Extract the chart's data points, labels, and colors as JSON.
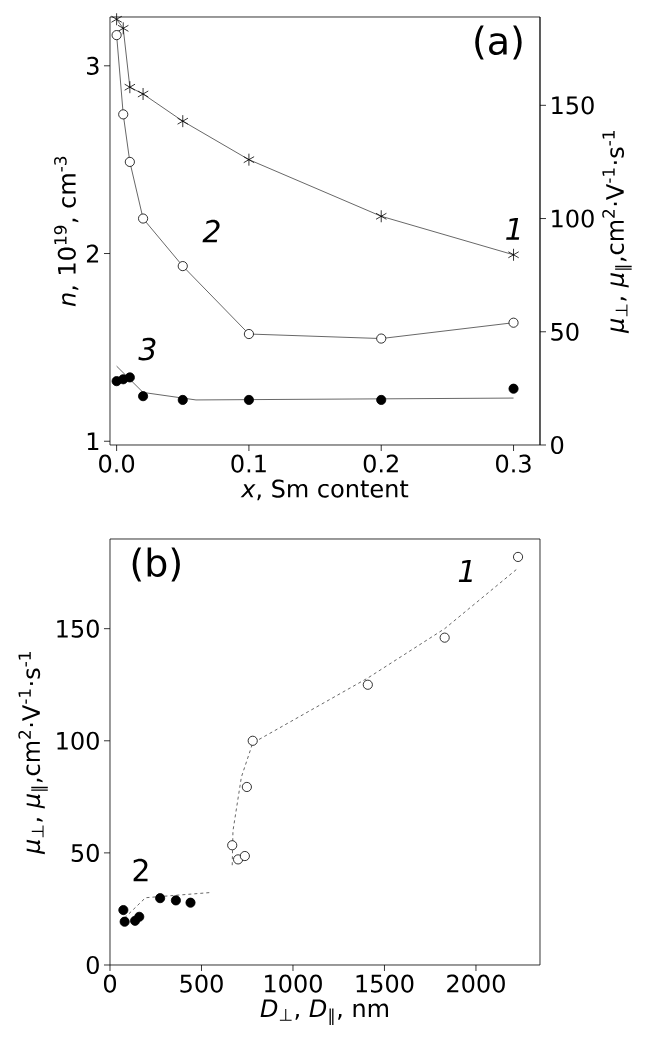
{
  "chart_data": [
    {
      "type": "line",
      "xlabel": "*x*, Sm content",
      "ylabel": "*n*, 10$^{19}$, cm$^{-3}$",
      "y2label": "*μ*$_{⊥}$, *μ*$_{∥}$,cm$^{2}$·V$^{-1}$·s$^{-1}$",
      "annotations": [
        "(a)",
        "*1*",
        "*2*",
        "*3*"
      ],
      "xlim": [
        -0.005,
        0.32
      ],
      "xticks": [
        {
          "value": 0,
          "label": "0.0"
        },
        0.1,
        0.2,
        0.3
      ],
      "ylim": [
        0.98,
        3.26
      ],
      "yticks": [
        1,
        2,
        3
      ],
      "y2lim": [
        0,
        189
      ],
      "y2ticks": [
        0,
        50,
        100,
        150
      ],
      "line_style": "solid",
      "series": [
        {
          "axis": "y2",
          "marker": "cross",
          "color": "#000000",
          "x": [
            0,
            0.005,
            0.01,
            0.02,
            0.05,
            0.1,
            0.2,
            0.3
          ],
          "values": [
            188,
            184,
            158,
            155,
            143,
            126,
            101,
            84
          ]
        },
        {
          "axis": "y2",
          "marker": "circle",
          "color": "#ffffff",
          "x": [
            0,
            0.005,
            0.01,
            0.02,
            0.05,
            0.1,
            0.2,
            0.3
          ],
          "values": [
            181,
            146,
            125,
            100,
            79,
            49,
            47,
            54
          ]
        },
        {
          "type": "scatter",
          "axis": "y",
          "marker": "circle",
          "color": "#000000",
          "x": [
            0,
            0.005,
            0.01,
            0.02,
            0.05,
            0.1,
            0.2,
            0.3
          ],
          "values": [
            1.32,
            1.33,
            1.34,
            1.24,
            1.22,
            1.22,
            1.22,
            1.28
          ]
        },
        {
          "axis": "y",
          "marker": "none",
          "color": "#000000",
          "x": [
            0,
            0.02,
            0.06,
            0.3
          ],
          "values": [
            1.4,
            1.26,
            1.22,
            1.23
          ]
        }
      ]
    },
    {
      "type": "scatter",
      "xlabel": "*D*$_{⊥}$, *D*$_{∥}$, nm",
      "ylabel": "*μ*$_{⊥}$, *μ*$_{∥}$,cm$^{2}$·V$^{-1}$·s$^{-1}$",
      "annotations": [
        "(b)",
        "*1*",
        "2"
      ],
      "xlim": [
        0,
        2350
      ],
      "xticks": [
        0,
        500,
        1000,
        1500,
        2000
      ],
      "ylim": [
        0,
        190
      ],
      "yticks": [
        0,
        50,
        100,
        150
      ],
      "series": [
        {
          "marker": "circle",
          "color": "#ffffff",
          "x": [
            668,
            700,
            737,
            748,
            780,
            1409,
            1829,
            2230
          ],
          "values": [
            53.4,
            47.1,
            48.6,
            79.4,
            100,
            125,
            146,
            182
          ]
        },
        {
          "marker": "circle",
          "color": "#000000",
          "x": [
            73,
            80,
            137,
            160,
            274,
            360,
            440
          ],
          "values": [
            24.5,
            19.3,
            19.7,
            21.5,
            29.8,
            28.8,
            27.8
          ]
        },
        {
          "type": "line",
          "marker": "none",
          "line_style": "dashed",
          "color": "#000000",
          "x": [
            668,
            672,
            718,
            780,
            1409,
            1829,
            2230
          ],
          "values": [
            44.5,
            59.8,
            83.8,
            99,
            128,
            150,
            177
          ]
        },
        {
          "type": "line",
          "marker": "none",
          "line_style": "dashed",
          "color": "#000000",
          "x": [
            80,
            194,
            547
          ],
          "values": [
            21,
            30,
            32.3
          ]
        }
      ]
    }
  ]
}
